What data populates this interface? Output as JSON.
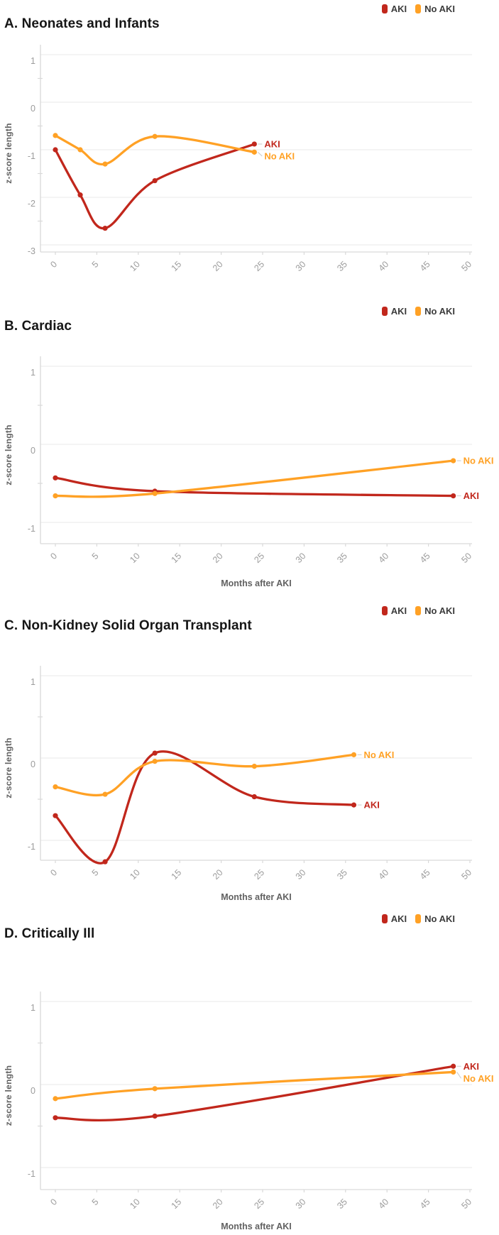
{
  "colors": {
    "aki": "#C1271C",
    "no_aki": "#FFA125",
    "grid": "#ededed",
    "axis": "#d9d9d9",
    "tick_text": "#9c9c9c",
    "axis_title_text": "#616161",
    "legend_text": "#3b3b3b",
    "title_text": "#161616",
    "leader": "#c9c9c9"
  },
  "legend": {
    "position": "top-right",
    "items": [
      {
        "label": "AKI",
        "color": "#C1271C"
      },
      {
        "label": "No AKI",
        "color": "#FFA125"
      }
    ]
  },
  "chart_data": [
    {
      "id": "A",
      "type": "line",
      "title": "A. Neonates and Infants",
      "xlabel": "",
      "ylabel": "z-score length",
      "x_ticks": [
        0,
        5,
        10,
        15,
        20,
        25,
        30,
        35,
        40,
        45,
        50
      ],
      "y_ticks": [
        1,
        0,
        -1,
        -2,
        -3
      ],
      "xlim": [
        0,
        50
      ],
      "ylim": [
        1,
        -3
      ],
      "grid": "horizontal",
      "legend_position": "top-right",
      "series": [
        {
          "name": "AKI",
          "color": "#C1271C",
          "end_label": "AKI",
          "x": [
            0,
            3,
            6,
            12,
            24
          ],
          "y": [
            -1.0,
            -1.95,
            -2.65,
            -1.65,
            -0.88
          ]
        },
        {
          "name": "No AKI",
          "color": "#FFA125",
          "end_label": "No AKI",
          "x": [
            0,
            3,
            6,
            12,
            24
          ],
          "y": [
            -0.7,
            -1.0,
            -1.3,
            -0.72,
            -1.05
          ]
        }
      ]
    },
    {
      "id": "B",
      "type": "line",
      "title": "B. Cardiac",
      "xlabel": "Months after AKI",
      "ylabel": "z-score length",
      "x_ticks": [
        0,
        5,
        10,
        15,
        20,
        25,
        30,
        35,
        40,
        45,
        50
      ],
      "y_ticks": [
        1,
        0,
        -1
      ],
      "xlim": [
        0,
        50
      ],
      "ylim": [
        1,
        -1
      ],
      "grid": "horizontal",
      "legend_position": "top-right",
      "series": [
        {
          "name": "AKI",
          "color": "#C1271C",
          "end_label": "AKI",
          "x": [
            0,
            12,
            48
          ],
          "y": [
            -0.43,
            -0.6,
            -0.66
          ]
        },
        {
          "name": "No AKI",
          "color": "#FFA125",
          "end_label": "No AKI",
          "x": [
            0,
            12,
            48
          ],
          "y": [
            -0.66,
            -0.63,
            -0.21
          ]
        }
      ]
    },
    {
      "id": "C",
      "type": "line",
      "title": "C. Non-Kidney Solid Organ Transplant",
      "xlabel": "Months after AKI",
      "ylabel": "z-score length",
      "x_ticks": [
        0,
        5,
        10,
        15,
        20,
        25,
        30,
        35,
        40,
        45,
        50
      ],
      "y_ticks": [
        1,
        0,
        -1
      ],
      "xlim": [
        0,
        50
      ],
      "ylim": [
        1,
        -1
      ],
      "grid": "horizontal",
      "legend_position": "top-right",
      "series": [
        {
          "name": "AKI",
          "color": "#C1271C",
          "end_label": "AKI",
          "x": [
            0,
            6,
            12,
            24,
            36
          ],
          "y": [
            -0.7,
            -1.26,
            0.06,
            -0.47,
            -0.57
          ]
        },
        {
          "name": "No AKI",
          "color": "#FFA125",
          "end_label": "No AKI",
          "x": [
            0,
            6,
            12,
            24,
            36
          ],
          "y": [
            -0.35,
            -0.44,
            -0.04,
            -0.1,
            0.04
          ]
        }
      ]
    },
    {
      "id": "D",
      "type": "line",
      "title": "D. Critically Ill",
      "xlabel": "Months after AKI",
      "ylabel": "z-score length",
      "x_ticks": [
        0,
        5,
        10,
        15,
        20,
        25,
        30,
        35,
        40,
        45,
        50
      ],
      "y_ticks": [
        1,
        0,
        -1
      ],
      "xlim": [
        0,
        50
      ],
      "ylim": [
        1,
        -1
      ],
      "grid": "horizontal",
      "legend_position": "top-right",
      "series": [
        {
          "name": "AKI",
          "color": "#C1271C",
          "end_label": "AKI",
          "x": [
            0,
            12,
            48
          ],
          "y": [
            -0.4,
            -0.38,
            0.22
          ]
        },
        {
          "name": "No AKI",
          "color": "#FFA125",
          "end_label": "No AKI",
          "x": [
            0,
            12,
            48
          ],
          "y": [
            -0.17,
            -0.05,
            0.15
          ]
        }
      ]
    }
  ]
}
